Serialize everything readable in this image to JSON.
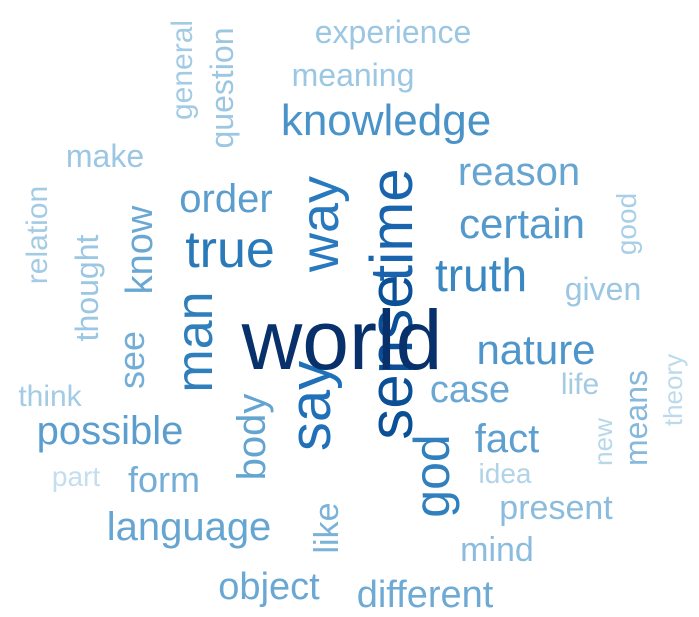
{
  "word_cloud": {
    "words": [
      {
        "text": "world",
        "weight": 1.0,
        "color": "#08306b"
      },
      {
        "text": "sense",
        "weight": 0.78,
        "color": "#0b4f96"
      },
      {
        "text": "time",
        "weight": 0.74,
        "color": "#1a64ad"
      },
      {
        "text": "say",
        "weight": 0.72,
        "color": "#1f70b8"
      },
      {
        "text": "way",
        "weight": 0.66,
        "color": "#2879bd"
      },
      {
        "text": "true",
        "weight": 0.62,
        "color": "#2a7ab9"
      },
      {
        "text": "man",
        "weight": 0.62,
        "color": "#2f7fbc"
      },
      {
        "text": "god",
        "weight": 0.6,
        "color": "#2f80bd"
      },
      {
        "text": "truth",
        "weight": 0.56,
        "color": "#3a88c2"
      },
      {
        "text": "knowledge",
        "weight": 0.5,
        "color": "#4a93c8"
      },
      {
        "text": "nature",
        "weight": 0.48,
        "color": "#4d95ca"
      },
      {
        "text": "certain",
        "weight": 0.46,
        "color": "#5399cc"
      },
      {
        "text": "fact",
        "weight": 0.44,
        "color": "#5d9fcf"
      },
      {
        "text": "order",
        "weight": 0.44,
        "color": "#5b9ece"
      },
      {
        "text": "possible",
        "weight": 0.44,
        "color": "#5b9ece"
      },
      {
        "text": "body",
        "weight": 0.42,
        "color": "#64a4d1"
      },
      {
        "text": "language",
        "weight": 0.42,
        "color": "#66a5d2"
      },
      {
        "text": "reason",
        "weight": 0.42,
        "color": "#66a5d2"
      },
      {
        "text": "case",
        "weight": 0.4,
        "color": "#6aa8d3"
      },
      {
        "text": "know",
        "weight": 0.4,
        "color": "#6aa8d3"
      },
      {
        "text": "object",
        "weight": 0.4,
        "color": "#6aa8d3"
      },
      {
        "text": "different",
        "weight": 0.4,
        "color": "#6eaad4"
      },
      {
        "text": "see",
        "weight": 0.38,
        "color": "#74aed6"
      },
      {
        "text": "form",
        "weight": 0.38,
        "color": "#74aed6"
      },
      {
        "text": "like",
        "weight": 0.36,
        "color": "#7ab2d8"
      },
      {
        "text": "means",
        "weight": 0.34,
        "color": "#86b9dc"
      },
      {
        "text": "present",
        "weight": 0.34,
        "color": "#8bbcdd"
      },
      {
        "text": "mind",
        "weight": 0.34,
        "color": "#8bbcdd"
      },
      {
        "text": "experience",
        "weight": 0.3,
        "color": "#9cc7e2"
      },
      {
        "text": "meaning",
        "weight": 0.3,
        "color": "#9cc7e2"
      },
      {
        "text": "question",
        "weight": 0.3,
        "color": "#9cc7e2"
      },
      {
        "text": "make",
        "weight": 0.3,
        "color": "#9cc7e2"
      },
      {
        "text": "thought",
        "weight": 0.3,
        "color": "#9cc7e2"
      },
      {
        "text": "given",
        "weight": 0.3,
        "color": "#9cc7e2"
      },
      {
        "text": "life",
        "weight": 0.28,
        "color": "#a3cbe4"
      },
      {
        "text": "think",
        "weight": 0.28,
        "color": "#a3cbe4"
      },
      {
        "text": "general",
        "weight": 0.28,
        "color": "#a3cbe4"
      },
      {
        "text": "relation",
        "weight": 0.28,
        "color": "#a3cbe4"
      },
      {
        "text": "good",
        "weight": 0.26,
        "color": "#a9cfe6"
      },
      {
        "text": "idea",
        "weight": 0.26,
        "color": "#b0d3e8"
      },
      {
        "text": "new",
        "weight": 0.24,
        "color": "#b7d7ea"
      },
      {
        "text": "theory",
        "weight": 0.24,
        "color": "#bddaec"
      },
      {
        "text": "part",
        "weight": 0.24,
        "color": "#c3deee"
      }
    ]
  }
}
